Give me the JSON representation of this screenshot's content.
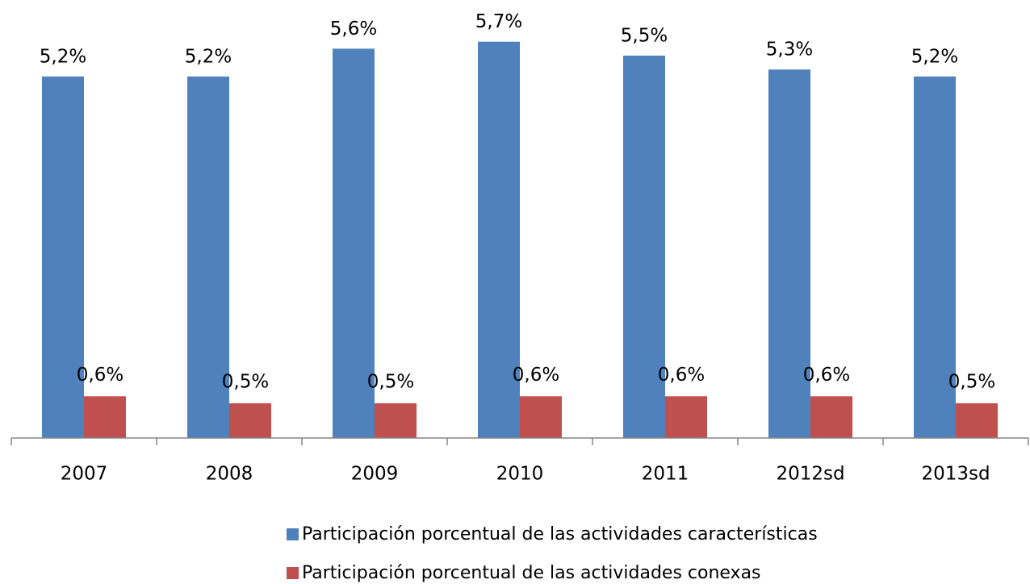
{
  "chart_data": {
    "type": "bar",
    "categories": [
      "2007",
      "2008",
      "2009",
      "2010",
      "2011",
      "2012sd",
      "2013sd"
    ],
    "series": [
      {
        "name": "Participación porcentual de las actividades características",
        "color": "#4f81bd",
        "values": [
          5.2,
          5.2,
          5.6,
          5.7,
          5.5,
          5.3,
          5.2
        ],
        "value_labels": [
          "5,2%",
          "5,2%",
          "5,6%",
          "5,7%",
          "5,5%",
          "5,3%",
          "5,2%"
        ]
      },
      {
        "name": "Participación porcentual de las actividades conexas",
        "color": "#c0504d",
        "values": [
          0.6,
          0.5,
          0.5,
          0.6,
          0.6,
          0.6,
          0.5
        ],
        "value_labels": [
          "0,6%",
          "0,5%",
          "0,5%",
          "0,6%",
          "0,6%",
          "0,6%",
          "0,5%"
        ]
      }
    ],
    "ylim": [
      0,
      6.3
    ]
  }
}
